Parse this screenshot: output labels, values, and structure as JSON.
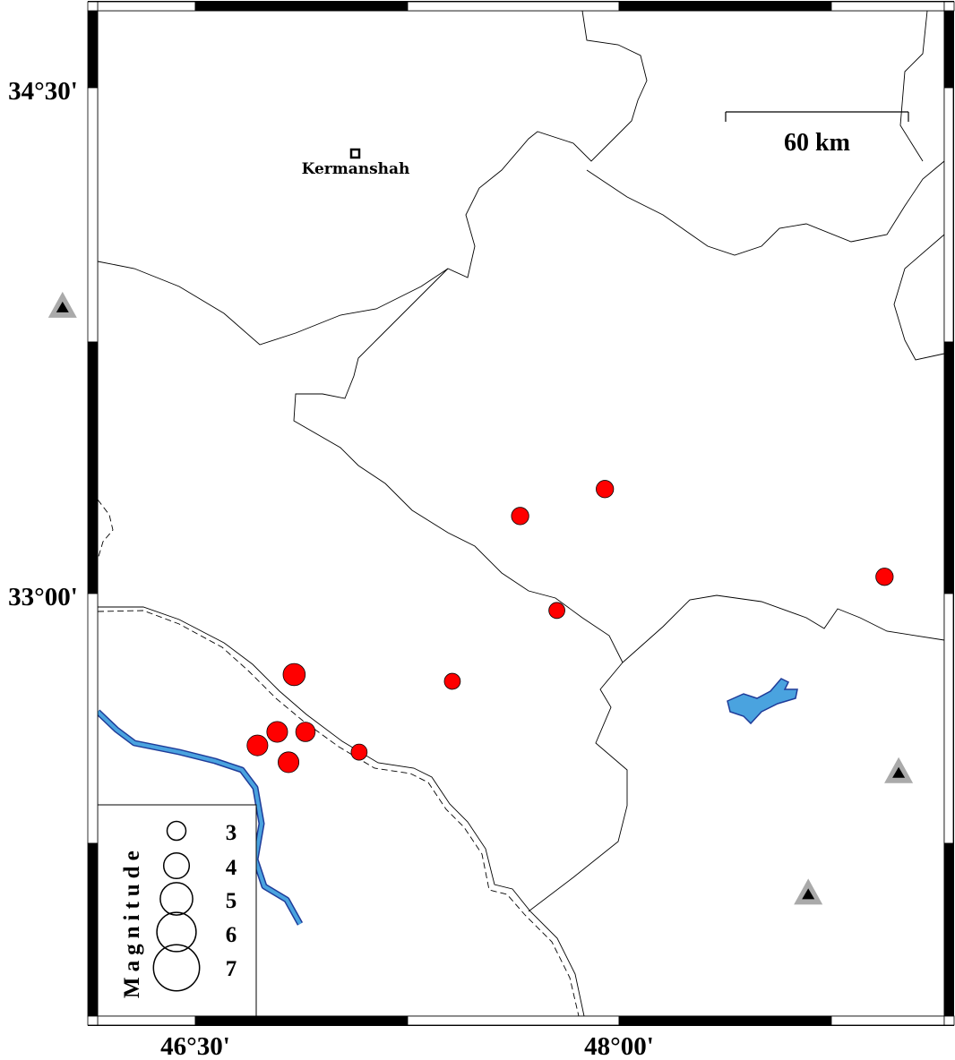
{
  "map": {
    "lat_labels": [
      "34°30'",
      "33°00'"
    ],
    "lon_labels": [
      "46°30'",
      "48°00'"
    ],
    "scale_bar": {
      "label": "60 km",
      "length_km": 60
    },
    "city": {
      "name": "Kermanshah",
      "lon": 47.06,
      "lat": 34.31,
      "icon": "square-icon"
    },
    "colors": {
      "earthquake": "#ff0000",
      "water": "#4aa3df",
      "water_outline": "#1f3c99",
      "station": "#aaaaaa",
      "station_inner": "#000000"
    },
    "earthquakes": [
      {
        "lon": 47.65,
        "lat": 33.23,
        "mag": 3.0
      },
      {
        "lon": 47.95,
        "lat": 33.31,
        "mag": 3.0
      },
      {
        "lon": 48.94,
        "lat": 33.05,
        "mag": 3.0
      },
      {
        "lon": 47.78,
        "lat": 32.95,
        "mag": 2.8
      },
      {
        "lon": 47.41,
        "lat": 32.74,
        "mag": 2.8
      },
      {
        "lon": 46.85,
        "lat": 32.76,
        "mag": 3.7
      },
      {
        "lon": 46.79,
        "lat": 32.59,
        "mag": 3.5
      },
      {
        "lon": 46.89,
        "lat": 32.59,
        "mag": 3.3
      },
      {
        "lon": 46.72,
        "lat": 32.55,
        "mag": 3.5
      },
      {
        "lon": 46.83,
        "lat": 32.5,
        "mag": 3.5
      },
      {
        "lon": 47.08,
        "lat": 32.53,
        "mag": 2.8
      }
    ],
    "stations": [
      {
        "lon": 46.03,
        "lat": 33.85
      },
      {
        "lon": 48.99,
        "lat": 32.47
      },
      {
        "lon": 48.67,
        "lat": 32.11
      }
    ]
  },
  "legend": {
    "title": "Magnitude",
    "magnitudes": [
      "3",
      "4",
      "5",
      "6",
      "7"
    ]
  }
}
